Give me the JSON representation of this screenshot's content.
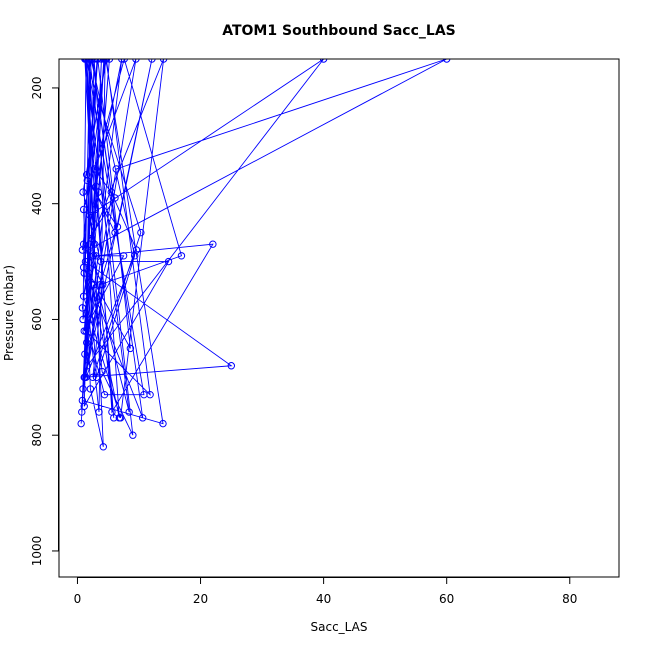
{
  "chart_data": {
    "type": "line",
    "title": "ATOM1 Southbound Sacc_LAS",
    "xlabel": "Sacc_LAS",
    "ylabel": "Pressure (mbar)",
    "xlim": [
      -3,
      88
    ],
    "ylim": [
      1045,
      150
    ],
    "y_reversed": true,
    "x_ticks": [
      0,
      20,
      40,
      60,
      80
    ],
    "x_tick_labels": [
      "0",
      "20",
      "40",
      "60",
      "80"
    ],
    "y_ticks": [
      200,
      400,
      600,
      800,
      1000
    ],
    "y_tick_labels": [
      "200",
      "400",
      "600",
      "800",
      "1000"
    ],
    "grid": false,
    "series_color": "#0000ff",
    "series": [
      {
        "name": "",
        "marker": "open-circle",
        "points": [
          [
            0.6,
            780
          ],
          [
            1.5,
            640
          ],
          [
            2.2,
            150
          ],
          [
            1.1,
            520
          ],
          [
            3.5,
            760
          ],
          [
            4.5,
            150
          ],
          [
            0.8,
            480
          ],
          [
            6.1,
            390
          ],
          [
            2.8,
            340
          ],
          [
            9.5,
            150
          ],
          [
            1.2,
            700
          ],
          [
            3.7,
            540
          ],
          [
            16.9,
            490
          ],
          [
            7.6,
            150
          ],
          [
            1.0,
            410
          ],
          [
            2.1,
            720
          ],
          [
            4.2,
            820
          ],
          [
            1.4,
            150
          ],
          [
            0.9,
            600
          ],
          [
            3.0,
            490
          ],
          [
            22.0,
            470
          ],
          [
            5.6,
            760
          ],
          [
            1.8,
            150
          ],
          [
            2.4,
            430
          ],
          [
            0.7,
            760
          ],
          [
            3.2,
            150
          ],
          [
            1.6,
            360
          ],
          [
            6.5,
            440
          ],
          [
            12.1,
            150
          ],
          [
            0.9,
            720
          ],
          [
            2.6,
            540
          ],
          [
            4.0,
            690
          ],
          [
            9.0,
            800
          ],
          [
            2.0,
            150
          ],
          [
            1.3,
            500
          ],
          [
            25.0,
            680
          ],
          [
            1.1,
            700
          ],
          [
            5.2,
            150
          ],
          [
            3.4,
            380
          ],
          [
            1.0,
            560
          ],
          [
            7.0,
            770
          ],
          [
            14.0,
            150
          ],
          [
            2.3,
            460
          ],
          [
            0.8,
            580
          ],
          [
            4.4,
            730
          ],
          [
            10.8,
            730
          ],
          [
            1.5,
            150
          ],
          [
            2.9,
            410
          ],
          [
            1.2,
            660
          ],
          [
            6.3,
            340
          ],
          [
            60.0,
            150
          ],
          [
            1.7,
            480
          ],
          [
            3.1,
            700
          ],
          [
            9.3,
            490
          ],
          [
            2.2,
            150
          ],
          [
            1.4,
            620
          ],
          [
            11.8,
            730
          ],
          [
            4.7,
            150
          ],
          [
            0.9,
            380
          ],
          [
            3.8,
            500
          ],
          [
            14.8,
            500
          ],
          [
            1.1,
            750
          ],
          [
            2.7,
            150
          ],
          [
            6.8,
            770
          ],
          [
            1.9,
            520
          ],
          [
            8.6,
            650
          ],
          [
            3.3,
            150
          ],
          [
            1.0,
            470
          ],
          [
            4.1,
            540
          ],
          [
            2.5,
            700
          ],
          [
            10.3,
            450
          ],
          [
            1.3,
            150
          ],
          [
            5.9,
            770
          ],
          [
            2.0,
            420
          ],
          [
            40.0,
            150
          ],
          [
            1.6,
            680
          ],
          [
            3.6,
            560
          ],
          [
            8.4,
            760
          ],
          [
            1.2,
            150
          ],
          [
            2.8,
            470
          ],
          [
            0.8,
            740
          ],
          [
            13.9,
            780
          ],
          [
            4.6,
            150
          ],
          [
            1.5,
            350
          ],
          [
            6.1,
            450
          ],
          [
            2.1,
            600
          ],
          [
            7.2,
            150
          ],
          [
            3.0,
            370
          ],
          [
            1.0,
            510
          ],
          [
            10.6,
            770
          ],
          [
            2.4,
            150
          ],
          [
            5.5,
            380
          ],
          [
            9.6,
            480
          ],
          [
            1.4,
            700
          ],
          [
            3.9,
            150
          ],
          [
            2.6,
            490
          ],
          [
            7.5,
            490
          ],
          [
            1.1,
            620
          ],
          [
            4.3,
            150
          ],
          [
            2.3,
            540
          ]
        ]
      }
    ]
  }
}
